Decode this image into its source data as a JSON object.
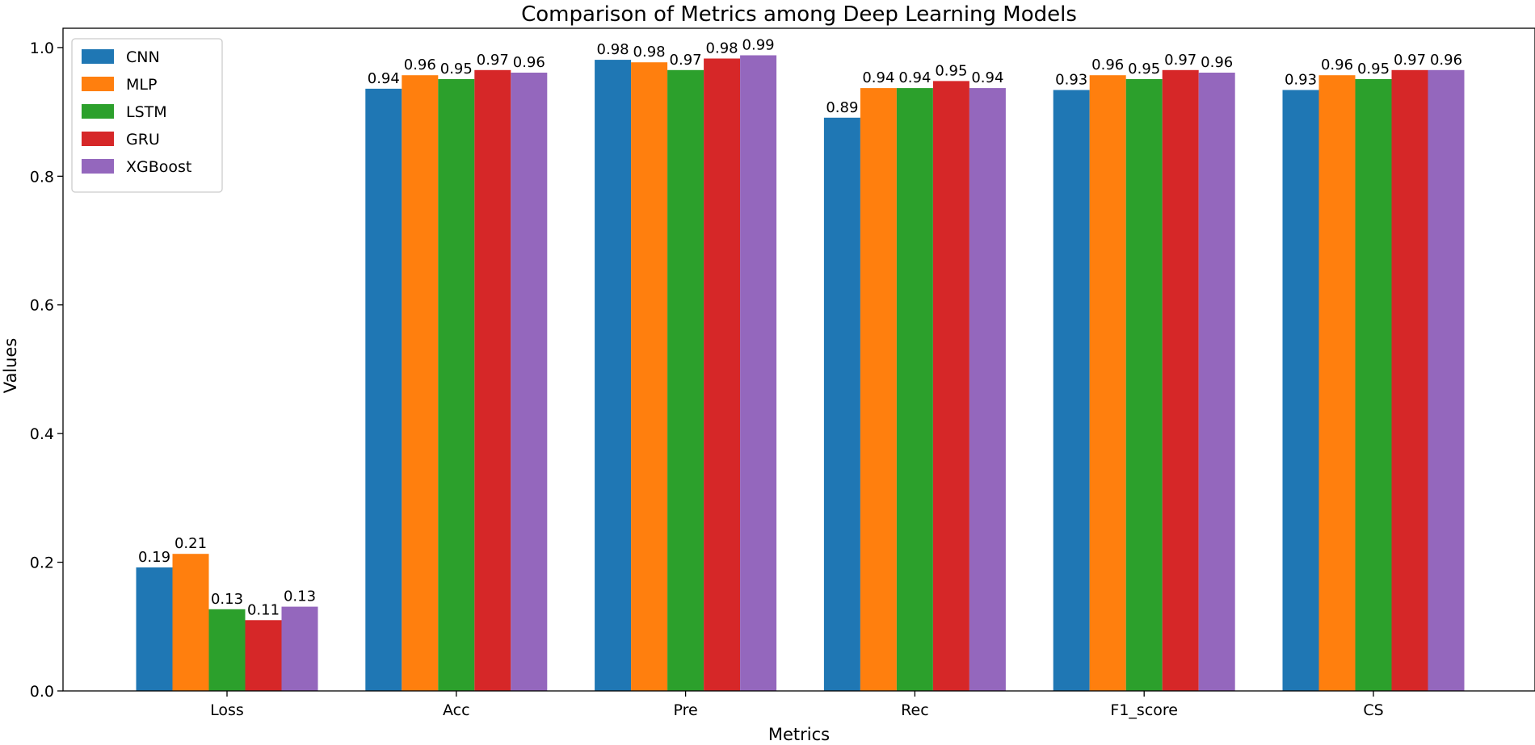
{
  "chart_data": {
    "type": "bar",
    "title": "Comparison of Metrics among Deep Learning Models",
    "xlabel": "Metrics",
    "ylabel": "Values",
    "categories": [
      "Loss",
      "Acc",
      "Pre",
      "Rec",
      "F1_score",
      "CS"
    ],
    "ylim": [
      0,
      1.03
    ],
    "yticks": [
      0.0,
      0.2,
      0.4,
      0.6,
      0.8,
      1.0
    ],
    "ytick_labels": [
      "0.0",
      "0.2",
      "0.4",
      "0.6",
      "0.8",
      "1.0"
    ],
    "legend_position": "top-left",
    "grid": false,
    "series": [
      {
        "name": "CNN",
        "color": "#1f77b4",
        "values": [
          0.192,
          0.936,
          0.981,
          0.891,
          0.934,
          0.934
        ],
        "labels": [
          "0.19",
          "0.94",
          "0.98",
          "0.89",
          "0.93",
          "0.93"
        ]
      },
      {
        "name": "MLP",
        "color": "#ff7f0e",
        "values": [
          0.213,
          0.957,
          0.977,
          0.937,
          0.957,
          0.957
        ],
        "labels": [
          "0.21",
          "0.96",
          "0.98",
          "0.94",
          "0.96",
          "0.96"
        ]
      },
      {
        "name": "LSTM",
        "color": "#2ca02c",
        "values": [
          0.127,
          0.951,
          0.965,
          0.937,
          0.951,
          0.951
        ],
        "labels": [
          "0.13",
          "0.95",
          "0.97",
          "0.94",
          "0.95",
          "0.95"
        ]
      },
      {
        "name": "GRU",
        "color": "#d62728",
        "values": [
          0.11,
          0.965,
          0.983,
          0.948,
          0.965,
          0.965
        ],
        "labels": [
          "0.11",
          "0.97",
          "0.98",
          "0.95",
          "0.97",
          "0.97"
        ]
      },
      {
        "name": "XGBoost",
        "color": "#9467bd",
        "values": [
          0.131,
          0.961,
          0.988,
          0.937,
          0.961,
          0.965
        ],
        "labels": [
          "0.13",
          "0.96",
          "0.99",
          "0.94",
          "0.96",
          "0.96"
        ]
      }
    ]
  }
}
